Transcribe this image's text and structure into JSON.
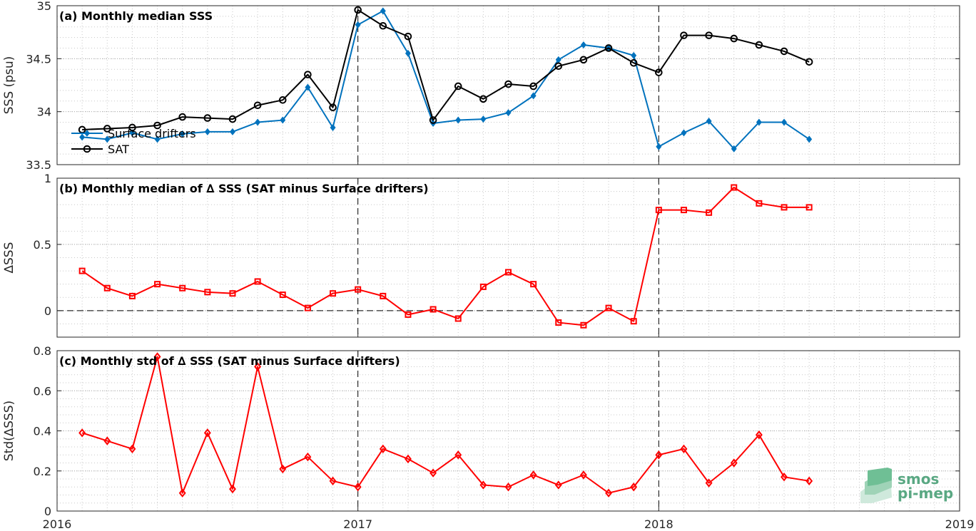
{
  "colors": {
    "drifters": "#0072BD",
    "sat": "#000000",
    "delta": "#FF0000",
    "logo": "#5FAF8A"
  },
  "x_axis": {
    "ticks": [
      2016,
      2017,
      2018,
      2019
    ],
    "range": [
      2016,
      2019
    ],
    "tick_labels": [
      "2016",
      "2017",
      "2018",
      "2019"
    ]
  },
  "logo": {
    "line1": "smos",
    "line2": "pi-mep"
  },
  "chart_data": [
    {
      "id": "a",
      "type": "line",
      "title": "(a) Monthly median SSS",
      "ylabel": "SSS (psu)",
      "ylim": [
        33.5,
        35
      ],
      "yticks": [
        33.5,
        34,
        34.5,
        35
      ],
      "ytick_labels": [
        "33.5",
        "34",
        "34.5",
        "35"
      ],
      "legend": {
        "placement": "left",
        "entries": [
          "Surface drifters",
          "SAT"
        ]
      },
      "grid": true,
      "x": [
        "2016-02",
        "2016-03",
        "2016-04",
        "2016-05",
        "2016-06",
        "2016-07",
        "2016-08",
        "2016-09",
        "2016-10",
        "2016-11",
        "2016-12",
        "2017-01",
        "2017-02",
        "2017-03",
        "2017-04",
        "2017-05",
        "2017-06",
        "2017-07",
        "2017-08",
        "2017-09",
        "2017-10",
        "2017-11",
        "2017-12",
        "2018-01",
        "2018-02",
        "2018-03",
        "2018-04",
        "2018-05",
        "2018-06",
        "2018-07"
      ],
      "series": [
        {
          "name": "Surface drifters",
          "marker": "diamond-filled",
          "values": [
            33.76,
            33.74,
            33.8,
            33.74,
            33.79,
            33.81,
            33.81,
            33.9,
            33.92,
            34.23,
            33.85,
            34.82,
            34.95,
            34.55,
            33.89,
            33.92,
            33.93,
            33.99,
            34.15,
            34.49,
            34.63,
            34.6,
            34.53,
            33.67,
            33.8,
            33.91,
            33.65,
            33.9,
            33.9,
            33.74
          ]
        },
        {
          "name": "SAT",
          "marker": "circle-open",
          "values": [
            33.83,
            33.84,
            33.85,
            33.87,
            33.95,
            33.94,
            33.93,
            34.06,
            34.11,
            34.35,
            34.04,
            34.96,
            34.81,
            34.71,
            33.92,
            34.24,
            34.12,
            34.26,
            34.24,
            34.43,
            34.49,
            34.6,
            34.46,
            34.37,
            34.72,
            34.72,
            34.69,
            34.63,
            34.57,
            34.47
          ]
        }
      ]
    },
    {
      "id": "b",
      "type": "line",
      "title": "(b) Monthly median of ∆ SSS (SAT minus Surface drifters)",
      "ylabel": "∆SSS",
      "ylim": [
        -0.2,
        1
      ],
      "yticks": [
        0,
        0.5,
        1
      ],
      "ytick_labels": [
        "0",
        "0.5",
        "1"
      ],
      "zero_line": true,
      "grid": true,
      "x": [
        "2016-02",
        "2016-03",
        "2016-04",
        "2016-05",
        "2016-06",
        "2016-07",
        "2016-08",
        "2016-09",
        "2016-10",
        "2016-11",
        "2016-12",
        "2017-01",
        "2017-02",
        "2017-03",
        "2017-04",
        "2017-05",
        "2017-06",
        "2017-07",
        "2017-08",
        "2017-09",
        "2017-10",
        "2017-11",
        "2017-12",
        "2018-01",
        "2018-02",
        "2018-03",
        "2018-04",
        "2018-05",
        "2018-06",
        "2018-07"
      ],
      "series": [
        {
          "marker": "square-open",
          "values": [
            0.3,
            0.17,
            0.11,
            0.2,
            0.17,
            0.14,
            0.13,
            0.22,
            0.12,
            0.02,
            0.13,
            0.16,
            0.11,
            -0.03,
            0.01,
            -0.06,
            0.18,
            0.29,
            0.2,
            -0.09,
            -0.11,
            0.02,
            -0.08,
            0.76,
            0.76,
            0.74,
            0.93,
            0.81,
            0.78,
            0.78
          ]
        }
      ]
    },
    {
      "id": "c",
      "type": "line",
      "title": "(c) Monthly std of ∆ SSS (SAT minus Surface drifters)",
      "ylabel": "Std(∆SSS)",
      "ylim": [
        0,
        0.8
      ],
      "yticks": [
        0,
        0.2,
        0.4,
        0.6,
        0.8
      ],
      "ytick_labels": [
        "0",
        "0.2",
        "0.4",
        "0.6",
        "0.8"
      ],
      "grid": true,
      "x": [
        "2016-02",
        "2016-03",
        "2016-04",
        "2016-05",
        "2016-06",
        "2016-07",
        "2016-08",
        "2016-09",
        "2016-10",
        "2016-11",
        "2016-12",
        "2017-01",
        "2017-02",
        "2017-03",
        "2017-04",
        "2017-05",
        "2017-06",
        "2017-07",
        "2017-08",
        "2017-09",
        "2017-10",
        "2017-11",
        "2017-12",
        "2018-01",
        "2018-02",
        "2018-03",
        "2018-04",
        "2018-05",
        "2018-06",
        "2018-07"
      ],
      "series": [
        {
          "marker": "diamond-open",
          "values": [
            0.39,
            0.35,
            0.31,
            0.77,
            0.09,
            0.39,
            0.11,
            0.72,
            0.21,
            0.27,
            0.15,
            0.12,
            0.31,
            0.26,
            0.19,
            0.28,
            0.13,
            0.12,
            0.18,
            0.13,
            0.18,
            0.09,
            0.12,
            0.28,
            0.31,
            0.14,
            0.24,
            0.38,
            0.17,
            0.15
          ]
        }
      ]
    }
  ]
}
